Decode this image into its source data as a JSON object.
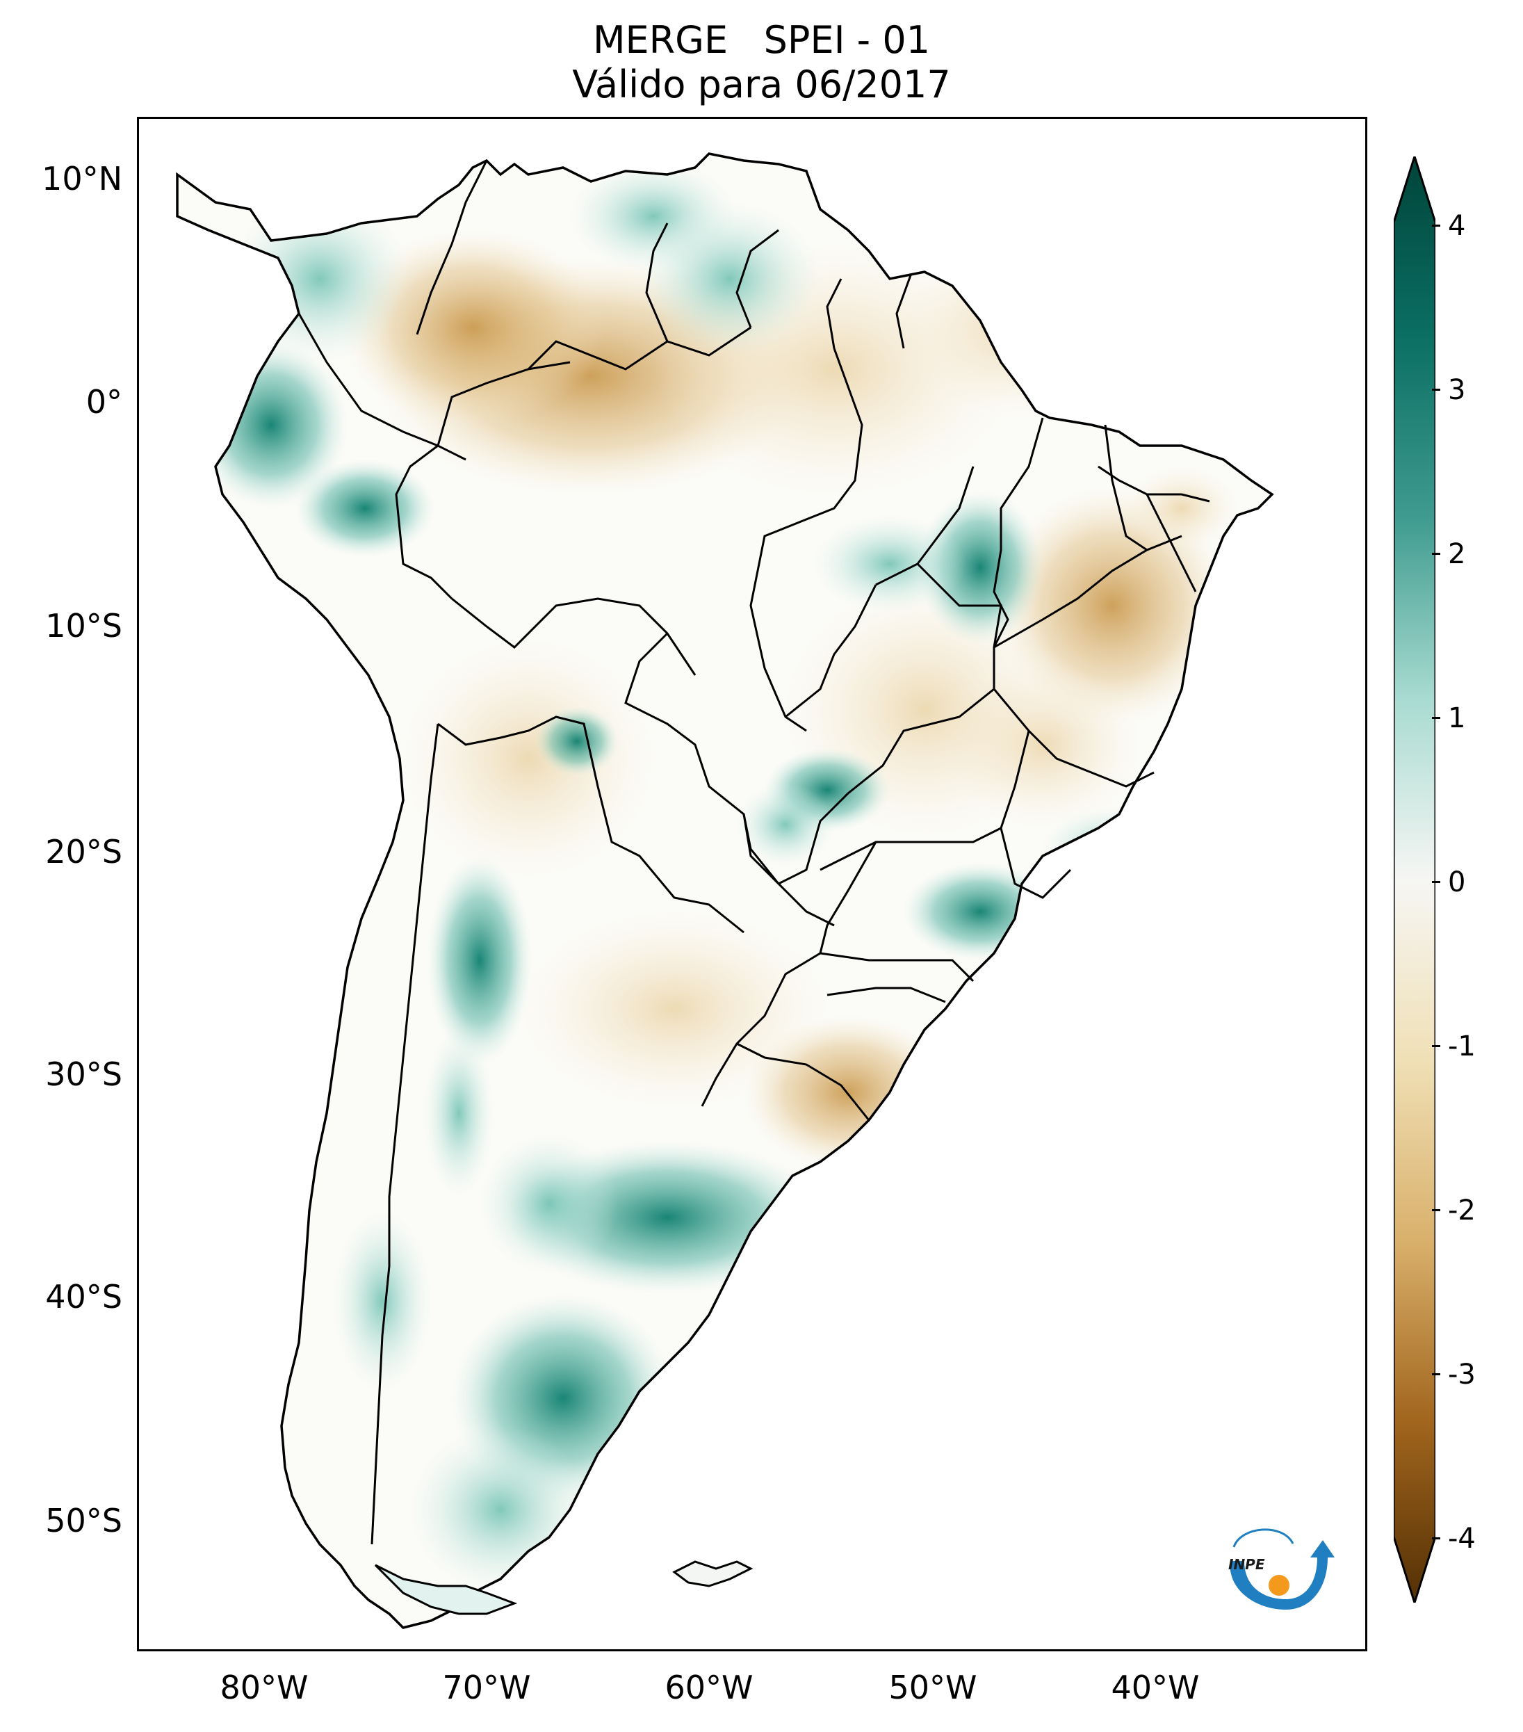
{
  "title": {
    "line1": "MERGE   SPEI - 01",
    "line2": "Válido para 06/2017"
  },
  "map": {
    "region": "South America",
    "lat_ticks": [
      "10°N",
      "0°",
      "10°S",
      "20°S",
      "30°S",
      "40°S",
      "50°S"
    ],
    "lon_ticks": [
      "80°W",
      "70°W",
      "60°W",
      "50°W",
      "40°W"
    ]
  },
  "colorbar": {
    "colormap": "BrBG",
    "range": [
      -4,
      4
    ],
    "tick_labels": [
      "4",
      "3",
      "2",
      "1",
      "0",
      "-1",
      "-2",
      "-3",
      "-4"
    ],
    "colors": {
      "wet": "#00443a",
      "neutral": "#ffffff",
      "dry": "#543005"
    }
  },
  "logo": {
    "text": "INPE",
    "colors": {
      "blue": "#1f7fc1",
      "orange": "#f39a1c"
    }
  }
}
